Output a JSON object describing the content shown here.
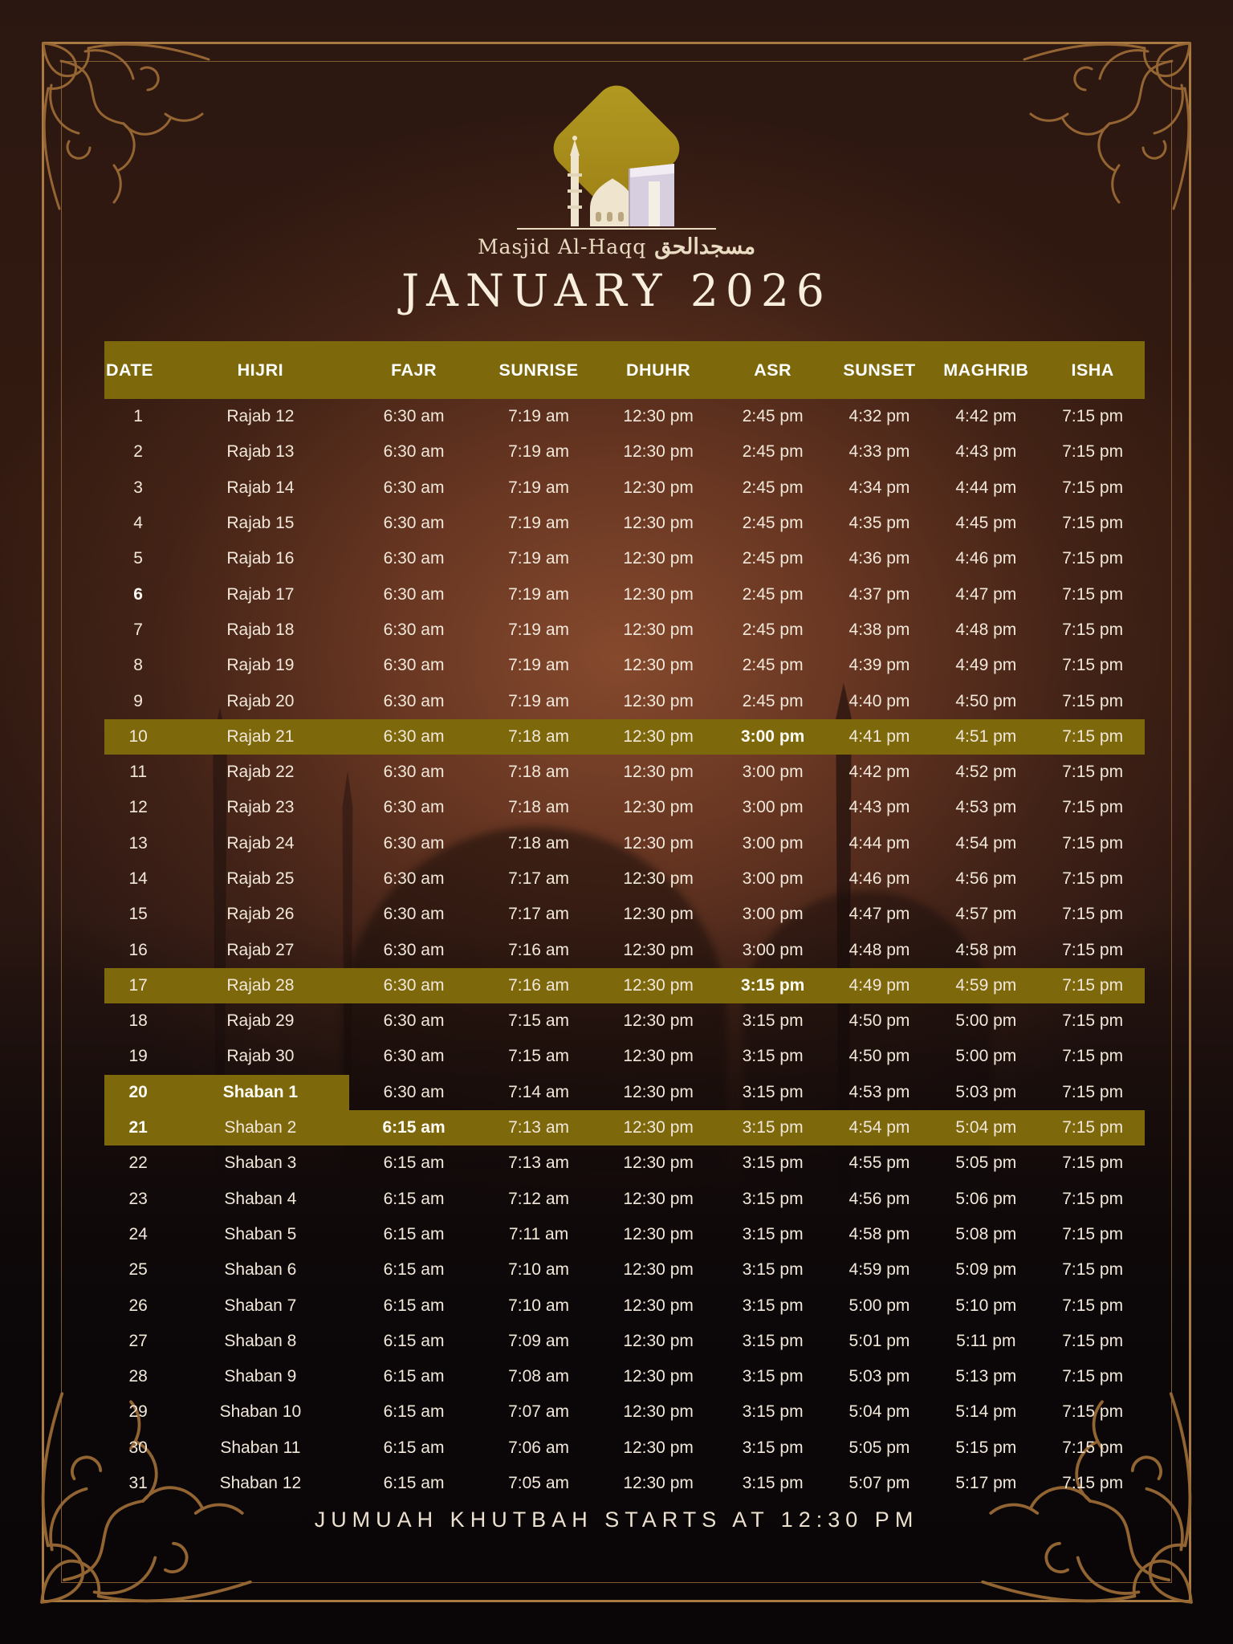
{
  "logo": {
    "name": "Masjid Al-Haqq",
    "arabic": "مسجدالحق",
    "icon": "mosque-icon"
  },
  "title": "JANUARY 2026",
  "footer": "JUMUAH KHUTBAH STARTS AT 12:30 PM",
  "colors": {
    "accent_olive": "#7d680c",
    "frame_gold": "#a97a41",
    "text_cream": "#f2e8da",
    "bg_rust": "#7a4630",
    "bg_dark": "#23130e"
  },
  "table": {
    "columns": [
      "DATE",
      "HIJRI",
      "FAJR",
      "SUNRISE",
      "DHUHR",
      "ASR",
      "SUNSET",
      "MAGHRIB",
      "ISHA"
    ],
    "column_keys": [
      "date",
      "hijri",
      "fajr",
      "sunrise",
      "dhuhr",
      "asr",
      "sunset",
      "maghrib",
      "isha"
    ],
    "rows": [
      {
        "cells": [
          "1",
          "Rajab 12",
          "6:30 am",
          "7:19 am",
          "12:30 pm",
          "2:45 pm",
          "4:32 pm",
          "4:42 pm",
          "7:15 pm"
        ],
        "hl": "",
        "bold": []
      },
      {
        "cells": [
          "2",
          "Rajab 13",
          "6:30 am",
          "7:19 am",
          "12:30 pm",
          "2:45 pm",
          "4:33 pm",
          "4:43 pm",
          "7:15 pm"
        ],
        "hl": "",
        "bold": []
      },
      {
        "cells": [
          "3",
          "Rajab 14",
          "6:30 am",
          "7:19 am",
          "12:30 pm",
          "2:45 pm",
          "4:34 pm",
          "4:44 pm",
          "7:15 pm"
        ],
        "hl": "",
        "bold": []
      },
      {
        "cells": [
          "4",
          "Rajab 15",
          "6:30 am",
          "7:19 am",
          "12:30 pm",
          "2:45 pm",
          "4:35 pm",
          "4:45 pm",
          "7:15 pm"
        ],
        "hl": "",
        "bold": []
      },
      {
        "cells": [
          "5",
          "Rajab 16",
          "6:30 am",
          "7:19 am",
          "12:30 pm",
          "2:45 pm",
          "4:36 pm",
          "4:46 pm",
          "7:15 pm"
        ],
        "hl": "",
        "bold": []
      },
      {
        "cells": [
          "6",
          "Rajab 17",
          "6:30 am",
          "7:19 am",
          "12:30 pm",
          "2:45 pm",
          "4:37 pm",
          "4:47 pm",
          "7:15 pm"
        ],
        "hl": "",
        "bold": [
          0
        ]
      },
      {
        "cells": [
          "7",
          "Rajab 18",
          "6:30 am",
          "7:19 am",
          "12:30 pm",
          "2:45 pm",
          "4:38 pm",
          "4:48 pm",
          "7:15 pm"
        ],
        "hl": "",
        "bold": []
      },
      {
        "cells": [
          "8",
          "Rajab 19",
          "6:30 am",
          "7:19 am",
          "12:30 pm",
          "2:45 pm",
          "4:39 pm",
          "4:49 pm",
          "7:15 pm"
        ],
        "hl": "",
        "bold": []
      },
      {
        "cells": [
          "9",
          "Rajab 20",
          "6:30 am",
          "7:19 am",
          "12:30 pm",
          "2:45 pm",
          "4:40 pm",
          "4:50 pm",
          "7:15 pm"
        ],
        "hl": "",
        "bold": []
      },
      {
        "cells": [
          "10",
          "Rajab 21",
          "6:30 am",
          "7:18 am",
          "12:30 pm",
          "3:00 pm",
          "4:41 pm",
          "4:51 pm",
          "7:15 pm"
        ],
        "hl": "full",
        "bold": [
          5
        ]
      },
      {
        "cells": [
          "11",
          "Rajab 22",
          "6:30 am",
          "7:18 am",
          "12:30 pm",
          "3:00 pm",
          "4:42 pm",
          "4:52 pm",
          "7:15 pm"
        ],
        "hl": "",
        "bold": []
      },
      {
        "cells": [
          "12",
          "Rajab 23",
          "6:30 am",
          "7:18 am",
          "12:30 pm",
          "3:00 pm",
          "4:43 pm",
          "4:53 pm",
          "7:15 pm"
        ],
        "hl": "",
        "bold": []
      },
      {
        "cells": [
          "13",
          "Rajab 24",
          "6:30 am",
          "7:18 am",
          "12:30 pm",
          "3:00 pm",
          "4:44 pm",
          "4:54 pm",
          "7:15 pm"
        ],
        "hl": "",
        "bold": []
      },
      {
        "cells": [
          "14",
          "Rajab 25",
          "6:30 am",
          "7:17 am",
          "12:30 pm",
          "3:00 pm",
          "4:46 pm",
          "4:56 pm",
          "7:15 pm"
        ],
        "hl": "",
        "bold": []
      },
      {
        "cells": [
          "15",
          "Rajab 26",
          "6:30 am",
          "7:17 am",
          "12:30 pm",
          "3:00 pm",
          "4:47 pm",
          "4:57 pm",
          "7:15 pm"
        ],
        "hl": "",
        "bold": []
      },
      {
        "cells": [
          "16",
          "Rajab 27",
          "6:30 am",
          "7:16 am",
          "12:30 pm",
          "3:00 pm",
          "4:48 pm",
          "4:58 pm",
          "7:15 pm"
        ],
        "hl": "",
        "bold": []
      },
      {
        "cells": [
          "17",
          "Rajab 28",
          "6:30 am",
          "7:16 am",
          "12:30 pm",
          "3:15 pm",
          "4:49 pm",
          "4:59 pm",
          "7:15 pm"
        ],
        "hl": "full",
        "bold": [
          5
        ]
      },
      {
        "cells": [
          "18",
          "Rajab 29",
          "6:30 am",
          "7:15 am",
          "12:30 pm",
          "3:15 pm",
          "4:50 pm",
          "5:00 pm",
          "7:15 pm"
        ],
        "hl": "",
        "bold": []
      },
      {
        "cells": [
          "19",
          "Rajab 30",
          "6:30 am",
          "7:15 am",
          "12:30 pm",
          "3:15 pm",
          "4:50 pm",
          "5:00 pm",
          "7:15 pm"
        ],
        "hl": "",
        "bold": []
      },
      {
        "cells": [
          "20",
          "Shaban 1",
          "6:30 am",
          "7:14 am",
          "12:30 pm",
          "3:15 pm",
          "4:53 pm",
          "5:03 pm",
          "7:15 pm"
        ],
        "hl": "left",
        "bold": [
          0,
          1
        ]
      },
      {
        "cells": [
          "21",
          "Shaban 2",
          "6:15 am",
          "7:13 am",
          "12:30 pm",
          "3:15 pm",
          "4:54 pm",
          "5:04 pm",
          "7:15 pm"
        ],
        "hl": "full",
        "bold": [
          0,
          2
        ]
      },
      {
        "cells": [
          "22",
          "Shaban 3",
          "6:15 am",
          "7:13 am",
          "12:30 pm",
          "3:15 pm",
          "4:55 pm",
          "5:05 pm",
          "7:15 pm"
        ],
        "hl": "",
        "bold": []
      },
      {
        "cells": [
          "23",
          "Shaban 4",
          "6:15 am",
          "7:12 am",
          "12:30 pm",
          "3:15 pm",
          "4:56 pm",
          "5:06 pm",
          "7:15 pm"
        ],
        "hl": "",
        "bold": []
      },
      {
        "cells": [
          "24",
          "Shaban 5",
          "6:15 am",
          "7:11 am",
          "12:30 pm",
          "3:15 pm",
          "4:58 pm",
          "5:08 pm",
          "7:15 pm"
        ],
        "hl": "",
        "bold": []
      },
      {
        "cells": [
          "25",
          "Shaban 6",
          "6:15 am",
          "7:10 am",
          "12:30 pm",
          "3:15 pm",
          "4:59 pm",
          "5:09 pm",
          "7:15 pm"
        ],
        "hl": "",
        "bold": []
      },
      {
        "cells": [
          "26",
          "Shaban 7",
          "6:15 am",
          "7:10 am",
          "12:30 pm",
          "3:15 pm",
          "5:00 pm",
          "5:10 pm",
          "7:15 pm"
        ],
        "hl": "",
        "bold": []
      },
      {
        "cells": [
          "27",
          "Shaban 8",
          "6:15 am",
          "7:09 am",
          "12:30 pm",
          "3:15 pm",
          "5:01 pm",
          "5:11 pm",
          "7:15 pm"
        ],
        "hl": "",
        "bold": []
      },
      {
        "cells": [
          "28",
          "Shaban 9",
          "6:15 am",
          "7:08 am",
          "12:30 pm",
          "3:15 pm",
          "5:03 pm",
          "5:13 pm",
          "7:15 pm"
        ],
        "hl": "",
        "bold": []
      },
      {
        "cells": [
          "29",
          "Shaban 10",
          "6:15 am",
          "7:07 am",
          "12:30 pm",
          "3:15 pm",
          "5:04 pm",
          "5:14 pm",
          "7:15 pm"
        ],
        "hl": "",
        "bold": []
      },
      {
        "cells": [
          "30",
          "Shaban 11",
          "6:15 am",
          "7:06 am",
          "12:30 pm",
          "3:15 pm",
          "5:05 pm",
          "5:15 pm",
          "7:15 pm"
        ],
        "hl": "",
        "bold": []
      },
      {
        "cells": [
          "31",
          "Shaban 12",
          "6:15 am",
          "7:05 am",
          "12:30 pm",
          "3:15 pm",
          "5:07 pm",
          "5:17 pm",
          "7:15 pm"
        ],
        "hl": "",
        "bold": []
      }
    ]
  }
}
